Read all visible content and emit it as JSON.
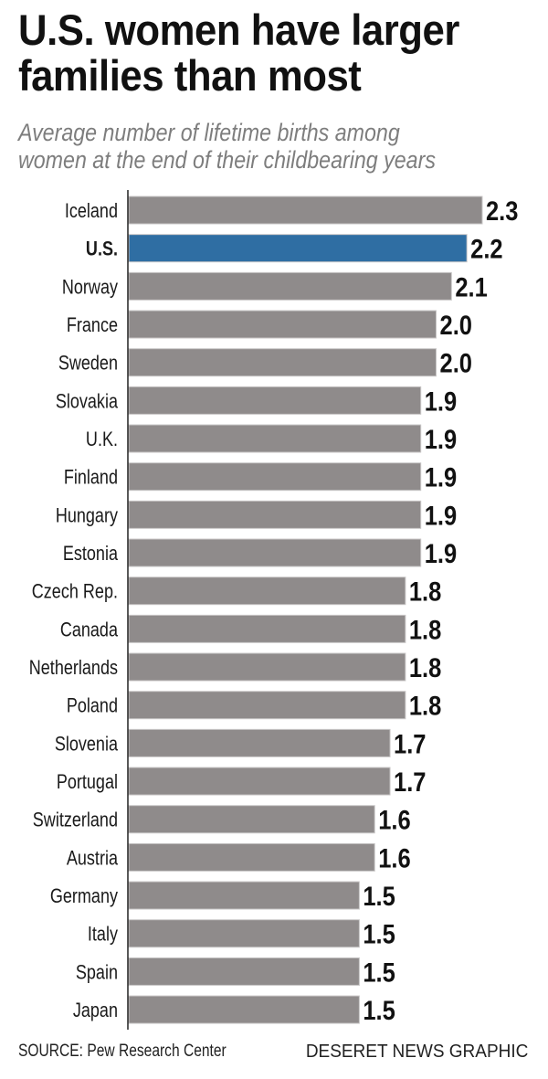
{
  "chart_data": {
    "type": "bar",
    "orientation": "horizontal",
    "title": "U.S. women have larger families than most",
    "subtitle": "Average number of lifetime births among women at the end of their childbearing years",
    "categories": [
      "Iceland",
      "U.S.",
      "Norway",
      "France",
      "Sweden",
      "Slovakia",
      "U.K.",
      "Finland",
      "Hungary",
      "Estonia",
      "Czech Rep.",
      "Canada",
      "Netherlands",
      "Poland",
      "Slovenia",
      "Portugal",
      "Switzerland",
      "Austria",
      "Germany",
      "Italy",
      "Spain",
      "Japan"
    ],
    "values": [
      2.3,
      2.2,
      2.1,
      2.0,
      2.0,
      1.9,
      1.9,
      1.9,
      1.9,
      1.9,
      1.8,
      1.8,
      1.8,
      1.8,
      1.7,
      1.7,
      1.6,
      1.6,
      1.5,
      1.5,
      1.5,
      1.5
    ],
    "value_labels": [
      "2.3",
      "2.2",
      "2.1",
      "2.0",
      "2.0",
      "1.9",
      "1.9",
      "1.9",
      "1.9",
      "1.9",
      "1.8",
      "1.8",
      "1.8",
      "1.8",
      "1.7",
      "1.7",
      "1.6",
      "1.6",
      "1.5",
      "1.5",
      "1.5",
      "1.5"
    ],
    "highlight": "U.S.",
    "xlim": [
      0,
      2.3
    ],
    "grid": false,
    "colors": {
      "bar": "#8f8b8b",
      "highlight": "#2f6ea3"
    }
  },
  "footer": {
    "source": "SOURCE: Pew Research Center",
    "credit": "DESERET NEWS GRAPHIC"
  }
}
